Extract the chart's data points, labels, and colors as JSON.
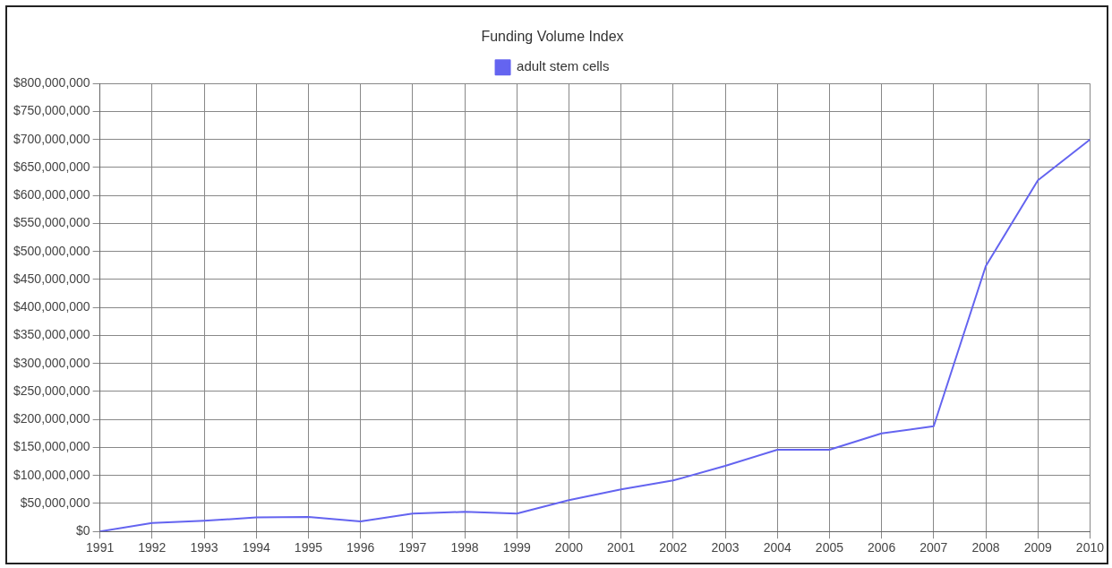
{
  "chart_data": {
    "type": "line",
    "title": "Funding Volume Index",
    "categories": [
      "1991",
      "1992",
      "1993",
      "1994",
      "1995",
      "1996",
      "1997",
      "1998",
      "1999",
      "2000",
      "2001",
      "2002",
      "2003",
      "2004",
      "2005",
      "2006",
      "2007",
      "2008",
      "2009",
      "2010"
    ],
    "series": [
      {
        "name": "adult stem cells",
        "color": "#6464f0",
        "values": [
          0,
          15000000,
          19000000,
          25000000,
          26000000,
          18000000,
          32000000,
          35000000,
          32000000,
          56000000,
          75000000,
          91000000,
          117000000,
          146000000,
          146000000,
          175000000,
          188000000,
          474000000,
          627000000,
          700000000
        ]
      }
    ],
    "ylim": [
      0,
      800000000
    ],
    "yticks": [
      {
        "value": 0,
        "label": "$0"
      },
      {
        "value": 50000000,
        "label": "$50,000,000"
      },
      {
        "value": 100000000,
        "label": "$100,000,000"
      },
      {
        "value": 150000000,
        "label": "$150,000,000"
      },
      {
        "value": 200000000,
        "label": "$200,000,000"
      },
      {
        "value": 250000000,
        "label": "$250,000,000"
      },
      {
        "value": 300000000,
        "label": "$300,000,000"
      },
      {
        "value": 350000000,
        "label": "$350,000,000"
      },
      {
        "value": 400000000,
        "label": "$400,000,000"
      },
      {
        "value": 450000000,
        "label": "$450,000,000"
      },
      {
        "value": 500000000,
        "label": "$500,000,000"
      },
      {
        "value": 550000000,
        "label": "$550,000,000"
      },
      {
        "value": 600000000,
        "label": "$600,000,000"
      },
      {
        "value": 650000000,
        "label": "$650,000,000"
      },
      {
        "value": 700000000,
        "label": "$700,000,000"
      },
      {
        "value": 750000000,
        "label": "$750,000,000"
      },
      {
        "value": 800000000,
        "label": "$800,000,000"
      }
    ],
    "grid": true,
    "legend": "top",
    "marker": "none",
    "line_style": "solid"
  }
}
